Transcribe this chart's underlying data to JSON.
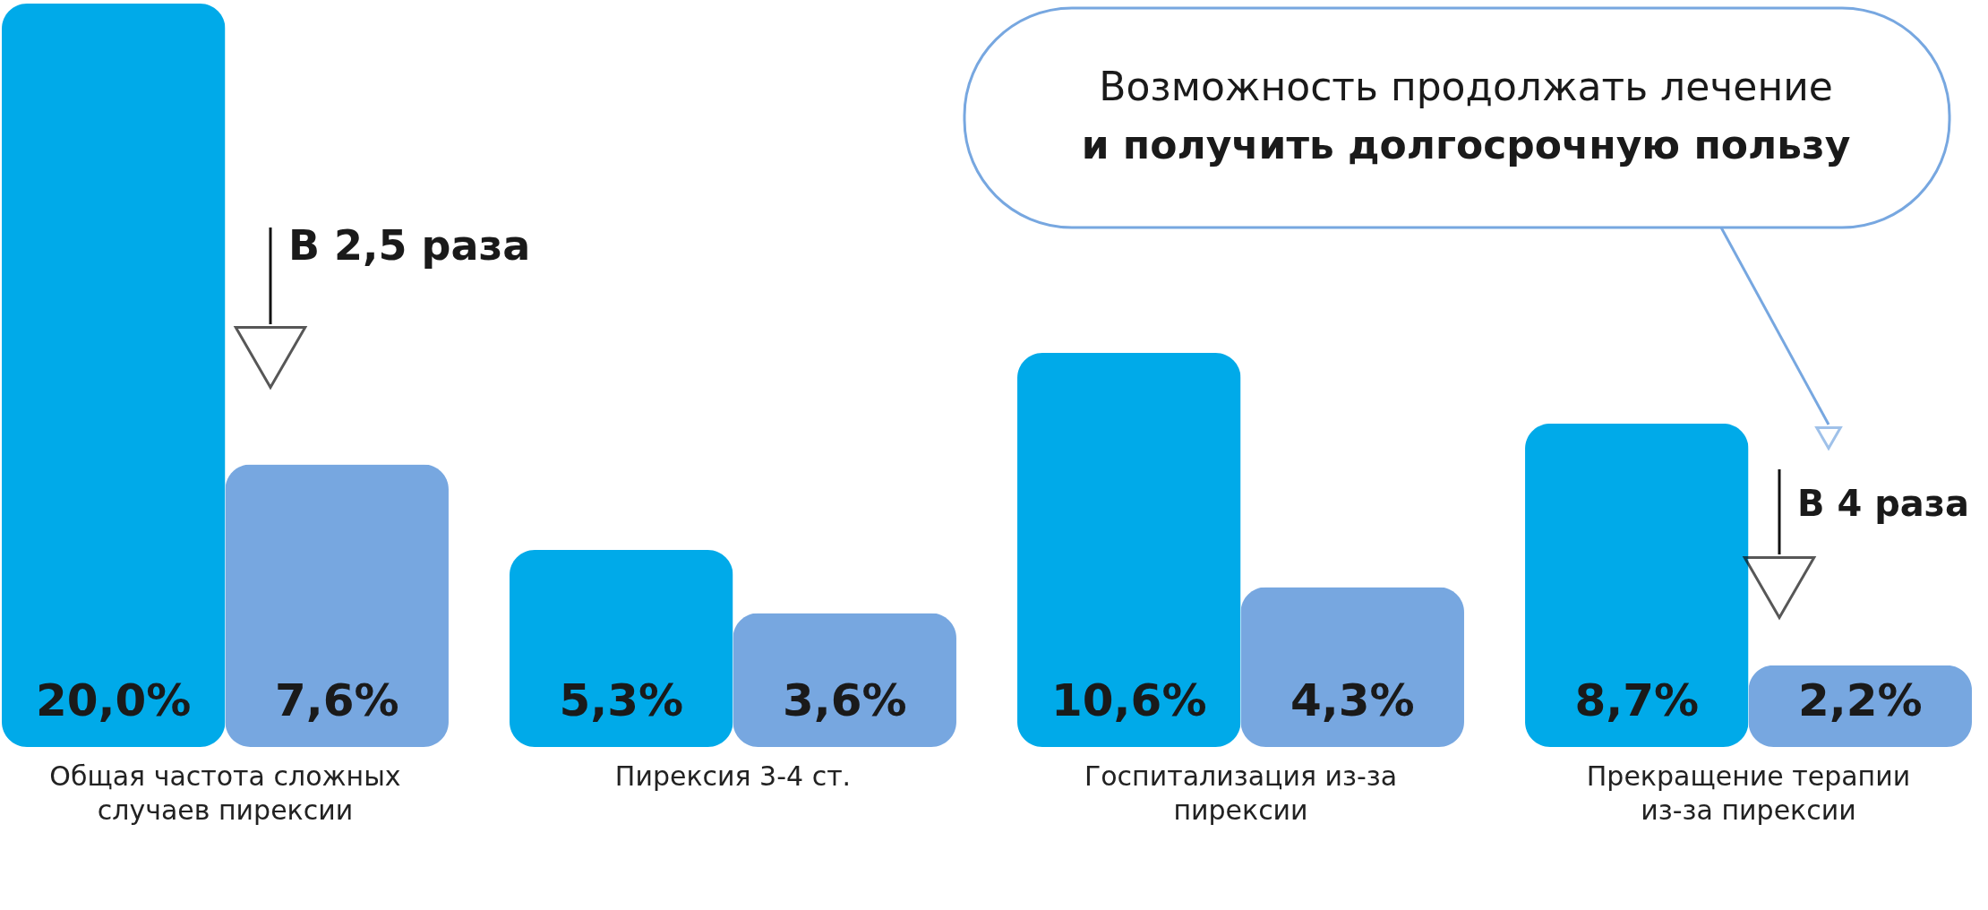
{
  "chart_data": {
    "type": "bar",
    "categories": [
      "Общая частота сложных случаев пирексии",
      "Пирексия 3-4 ст.",
      "Госпитализация из-за пирексии",
      "Прекращение терапии из-за пирексии"
    ],
    "series": [
      {
        "color": "#00aae9",
        "values": [
          20.0,
          5.3,
          10.6,
          8.7
        ],
        "value_labels": [
          "20,0%",
          "5,3%",
          "10,6%",
          "8,7%"
        ]
      },
      {
        "color": "#77a7e0",
        "values": [
          7.6,
          3.6,
          4.3,
          2.2
        ],
        "value_labels": [
          "7,6%",
          "3,6%",
          "4,3%",
          "2,2%"
        ]
      }
    ],
    "annotations": [
      "В 2,5 раза",
      "В 4 раза",
      "Возможность продолжать лечение",
      "и получить долгосрочную пользу"
    ],
    "grid": false,
    "legend": false
  }
}
